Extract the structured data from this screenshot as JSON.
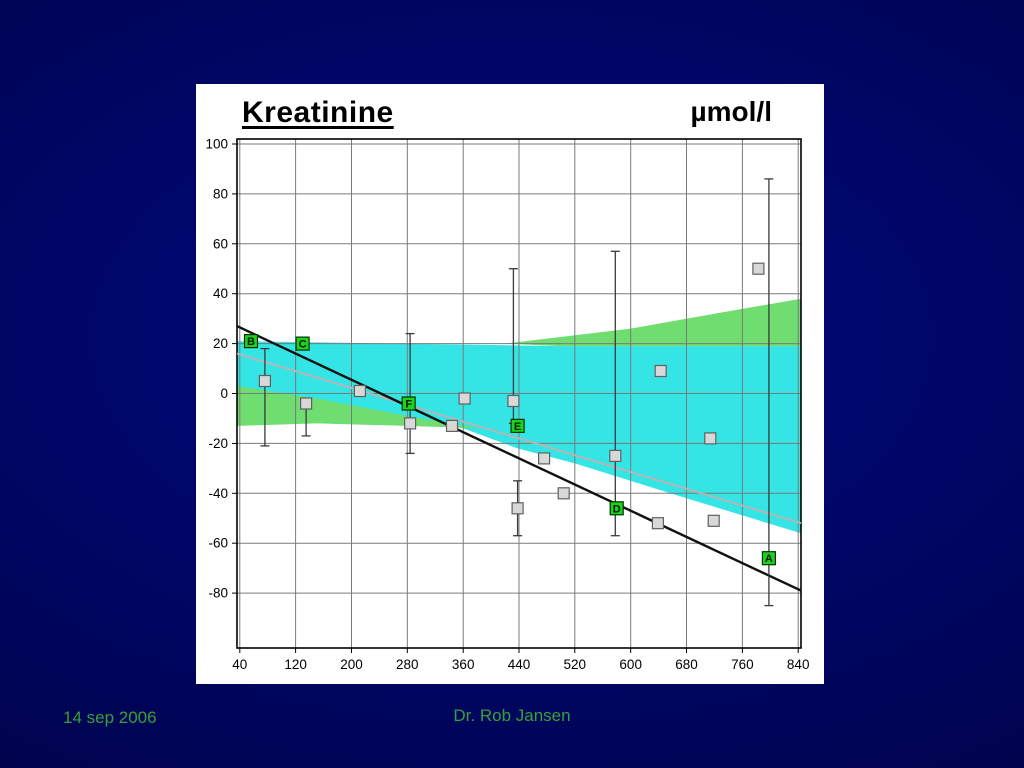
{
  "slide": {
    "footer_date": "14 sep 2006",
    "footer_author": "Dr. Rob Jansen",
    "footer_color": "#37a037",
    "background_color": "#000560"
  },
  "chart_data": {
    "type": "scatter",
    "title": "Kreatinine",
    "unit_label": "µmol/l",
    "xlim": [
      36,
      844
    ],
    "ylim": [
      -102,
      102
    ],
    "x_ticks": [
      40,
      120,
      200,
      280,
      360,
      440,
      520,
      600,
      680,
      760,
      840
    ],
    "y_ticks": [
      100,
      80,
      60,
      40,
      20,
      0,
      -20,
      -40,
      -60,
      -80
    ],
    "grid": true,
    "legend": "none",
    "colors": {
      "grid": "#7a7a7a",
      "border": "#000000",
      "cyan_band": "#35e4e4",
      "green_band": "#6fdd6f",
      "point_fill": "#d8d8d8",
      "point_stroke": "#606060",
      "marker_fill": "#1dd11d",
      "marker_stroke": "#003300",
      "errorbar": "#3a3a3a",
      "regression_line": "#111111",
      "reference_line": "#b5b5b5"
    },
    "bands": [
      {
        "name": "cyan-acceptance-band",
        "color": "#35e4e4",
        "points": [
          [
            36,
            21
          ],
          [
            500,
            19
          ],
          [
            844,
            19
          ],
          [
            844,
            -56
          ],
          [
            680,
            -42
          ],
          [
            520,
            -28
          ],
          [
            438,
            -22
          ],
          [
            360,
            -14
          ],
          [
            200,
            -5
          ],
          [
            36,
            1
          ]
        ]
      },
      {
        "name": "green-upper-band",
        "color": "#6fdd6f",
        "points": [
          [
            420,
            20
          ],
          [
            600,
            26
          ],
          [
            720,
            32
          ],
          [
            844,
            38
          ],
          [
            844,
            19
          ],
          [
            500,
            19
          ]
        ]
      },
      {
        "name": "green-left-band",
        "color": "#6fdd6f",
        "points": [
          [
            36,
            3
          ],
          [
            150,
            -2
          ],
          [
            280,
            -9
          ],
          [
            385,
            -14
          ],
          [
            280,
            -13
          ],
          [
            150,
            -12
          ],
          [
            36,
            -13
          ]
        ]
      }
    ],
    "lines": [
      {
        "name": "reference-line",
        "x1": 36,
        "y1": 16,
        "x2": 844,
        "y2": -52,
        "color": "#b5b5b5",
        "width": 2
      },
      {
        "name": "regression-line",
        "x1": 36,
        "y1": 27,
        "x2": 844,
        "y2": -79,
        "color": "#111111",
        "width": 2.4
      }
    ],
    "gray_points": [
      {
        "x": 76,
        "y": 5,
        "err_lo": -21,
        "err_hi": 18
      },
      {
        "x": 135,
        "y": -4,
        "err_lo": -17
      },
      {
        "x": 212,
        "y": 1
      },
      {
        "x": 284,
        "y": -12,
        "err_lo": -24,
        "err_hi": 24
      },
      {
        "x": 344,
        "y": -13
      },
      {
        "x": 362,
        "y": -2
      },
      {
        "x": 432,
        "y": -3,
        "err_lo": -12,
        "err_hi": 50
      },
      {
        "x": 438,
        "y": -46,
        "err_lo": -57,
        "err_hi": -35
      },
      {
        "x": 476,
        "y": -26
      },
      {
        "x": 504,
        "y": -40
      },
      {
        "x": 578,
        "y": -25,
        "err_lo": -57,
        "err_hi": 57
      },
      {
        "x": 643,
        "y": 9
      },
      {
        "x": 639,
        "y": -52
      },
      {
        "x": 714,
        "y": -18
      },
      {
        "x": 719,
        "y": -51
      },
      {
        "x": 783,
        "y": 50
      }
    ],
    "labeled_points": [
      {
        "label": "B",
        "x": 56,
        "y": 21
      },
      {
        "label": "C",
        "x": 130,
        "y": 20
      },
      {
        "label": "F",
        "x": 282,
        "y": -4
      },
      {
        "label": "E",
        "x": 438,
        "y": -13
      },
      {
        "label": "D",
        "x": 580,
        "y": -46
      },
      {
        "label": "A",
        "x": 798,
        "y": -66,
        "err_lo": -85,
        "err_hi": 86
      }
    ]
  }
}
